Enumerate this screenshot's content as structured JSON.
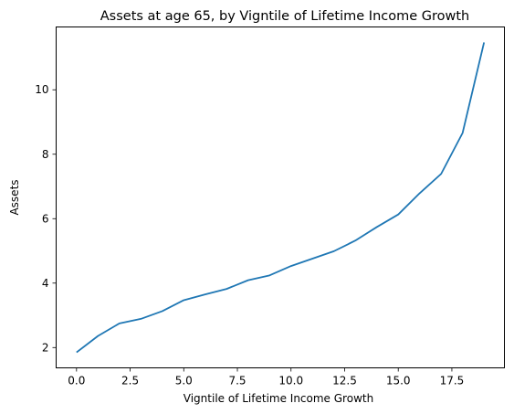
{
  "chart_data": {
    "type": "line",
    "title": "Assets at age 65, by Vigntile of Lifetime Income Growth",
    "xlabel": "Vigntile of Lifetime Income Growth",
    "ylabel": "Assets",
    "xlim": [
      -0.95,
      19.95
    ],
    "ylim": [
      1.37,
      11.95
    ],
    "xticks": [
      0.0,
      2.5,
      5.0,
      7.5,
      10.0,
      12.5,
      15.0,
      17.5
    ],
    "xtick_labels": [
      "0.0",
      "2.5",
      "5.0",
      "7.5",
      "10.0",
      "12.5",
      "15.0",
      "17.5"
    ],
    "yticks": [
      2,
      4,
      6,
      8,
      10
    ],
    "ytick_labels": [
      "2",
      "4",
      "6",
      "8",
      "10"
    ],
    "grid": false,
    "legend": "none",
    "series": [
      {
        "color": "#1f77b4",
        "x": [
          0,
          1,
          2,
          3,
          4,
          5,
          6,
          7,
          8,
          9,
          10,
          11,
          12,
          13,
          14,
          15,
          16,
          17,
          18,
          19
        ],
        "y": [
          1.85,
          2.36,
          2.75,
          2.89,
          3.13,
          3.47,
          3.65,
          3.82,
          4.09,
          4.24,
          4.53,
          4.76,
          4.99,
          5.32,
          5.74,
          6.13,
          6.79,
          7.39,
          8.66,
          11.47
        ]
      }
    ]
  }
}
